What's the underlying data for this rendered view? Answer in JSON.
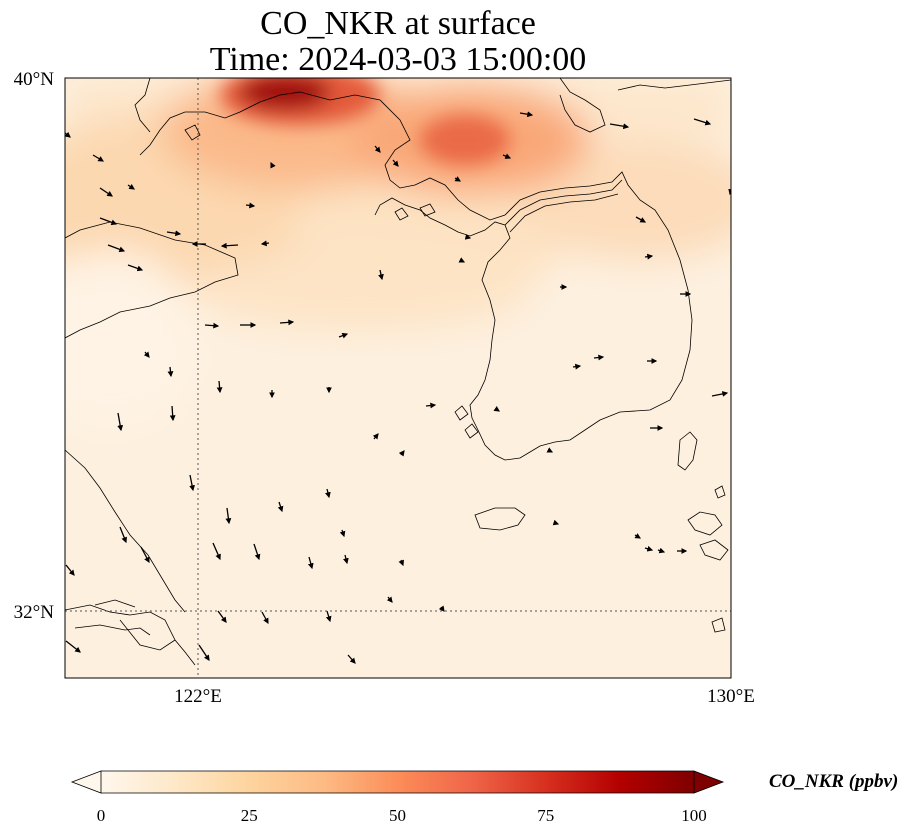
{
  "title": {
    "line1": "CO_NKR at surface",
    "line2": "Time: 2024-03-03 15:00:00"
  },
  "map": {
    "lon_range": [
      120,
      130
    ],
    "lat_range": [
      31,
      40
    ],
    "gridlines": {
      "lon": [
        122
      ],
      "lat": [
        32
      ],
      "style": "dotted"
    },
    "lat_ticks": [
      {
        "label": "40°N",
        "value": 40
      },
      {
        "label": "32°N",
        "value": 32
      }
    ],
    "lon_ticks": [
      {
        "label": "122°E",
        "value": 122
      },
      {
        "label": "130°E",
        "value": 130
      }
    ],
    "field": "CO_NKR concentration (shaded)",
    "vectors": "wind arrows (black)"
  },
  "colorbar": {
    "title": "CO_NKR (ppbv)",
    "ticks": [
      "0",
      "25",
      "50",
      "75",
      "100"
    ],
    "tick_values": [
      0,
      25,
      50,
      75,
      100
    ],
    "colormap": "OrRd",
    "extend": "both",
    "colors": [
      "#fff7ec",
      "#fee8c8",
      "#fdd49e",
      "#fdbb84",
      "#fc8d59",
      "#ef6548",
      "#d7301f",
      "#b30000",
      "#7f0000"
    ]
  }
}
